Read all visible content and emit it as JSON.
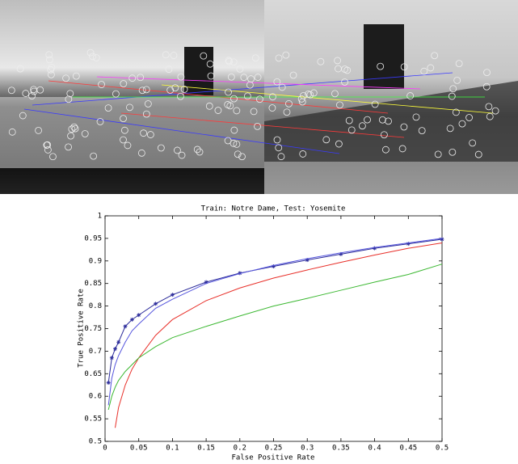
{
  "chart_data": {
    "type": "line",
    "title": "Train: Notre Dame, Test: Yosemite",
    "xlabel": "False Positive Rate",
    "ylabel": "True Positive Rate",
    "x": [
      0.005,
      0.01,
      0.015,
      0.02,
      0.03,
      0.04,
      0.05,
      0.075,
      0.1,
      0.15,
      0.2,
      0.25,
      0.3,
      0.35,
      0.4,
      0.45,
      0.5
    ],
    "series": [
      {
        "color": "#2b2b9a",
        "marker": "star",
        "values": [
          0.63,
          0.685,
          0.705,
          0.72,
          0.755,
          0.77,
          0.78,
          0.805,
          0.825,
          0.853,
          0.873,
          0.888,
          0.902,
          0.915,
          0.928,
          0.938,
          0.948
        ]
      },
      {
        "color": "#5555dd",
        "values": [
          0.58,
          0.64,
          0.67,
          0.69,
          0.72,
          0.745,
          0.76,
          0.795,
          0.815,
          0.85,
          0.872,
          0.89,
          0.905,
          0.918,
          0.93,
          0.94,
          0.95
        ]
      },
      {
        "color": "#e8302a",
        "values": [
          null,
          null,
          0.53,
          0.575,
          0.625,
          0.66,
          0.685,
          0.735,
          0.77,
          0.812,
          0.84,
          0.862,
          0.88,
          0.897,
          0.913,
          0.928,
          0.94
        ]
      },
      {
        "color": "#3cb832",
        "values": [
          0.57,
          0.6,
          0.62,
          0.635,
          0.655,
          0.67,
          0.685,
          0.71,
          0.73,
          0.755,
          0.778,
          0.8,
          0.817,
          0.835,
          0.853,
          0.87,
          0.893
        ]
      }
    ],
    "xlim": [
      0,
      0.5
    ],
    "ylim": [
      0.5,
      1
    ],
    "xticks": [
      0,
      0.05,
      0.1,
      0.15,
      0.2,
      0.25,
      0.3,
      0.35,
      0.4,
      0.45,
      0.5
    ],
    "yticks": [
      0.5,
      0.55,
      0.6,
      0.65,
      0.7,
      0.75,
      0.8,
      0.85,
      0.9,
      0.95,
      1
    ],
    "grid": false
  }
}
